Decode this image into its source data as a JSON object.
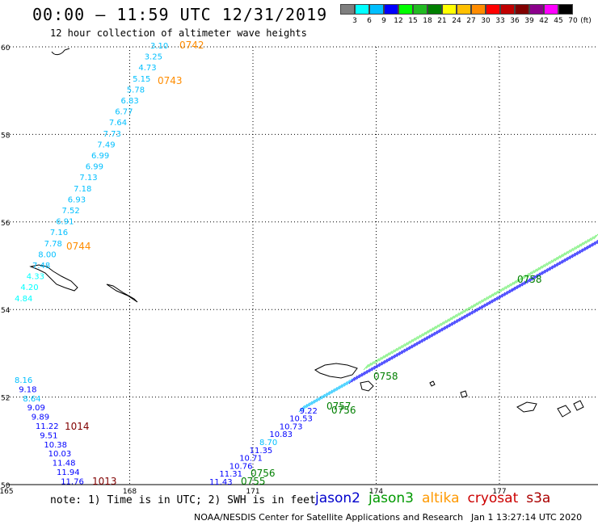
{
  "header": {
    "title": "00:00 – 11:59 UTC 12/31/2019",
    "subtitle": "12 hour collection of altimeter wave heights"
  },
  "legend": {
    "unit": "(ft)",
    "bins": [
      {
        "label": "3",
        "color": "#7f7f7f"
      },
      {
        "label": "6",
        "color": "#00ffff"
      },
      {
        "label": "9",
        "color": "#00bfff"
      },
      {
        "label": "12",
        "color": "#0000ff"
      },
      {
        "label": "15",
        "color": "#00ff00"
      },
      {
        "label": "18",
        "color": "#22bb22"
      },
      {
        "label": "21",
        "color": "#007f00"
      },
      {
        "label": "24",
        "color": "#ffff00"
      },
      {
        "label": "27",
        "color": "#ffc000"
      },
      {
        "label": "30",
        "color": "#ff8c00"
      },
      {
        "label": "33",
        "color": "#ff0000"
      },
      {
        "label": "36",
        "color": "#c00000"
      },
      {
        "label": "39",
        "color": "#800000"
      },
      {
        "label": "42",
        "color": "#8b008b"
      },
      {
        "label": "45",
        "color": "#ff00ff"
      },
      {
        "label": "70",
        "color": "#000000"
      }
    ]
  },
  "map": {
    "lat_labels": [
      "60",
      "58",
      "56",
      "54",
      "52",
      "50"
    ],
    "lon_labels": [
      "165",
      "168",
      "171",
      "174",
      "177"
    ],
    "lat_range": [
      50,
      60
    ],
    "lon_range": [
      165,
      179.4
    ]
  },
  "tracks": {
    "north_track": [
      {
        "label": "3.10",
        "color": "#00bfff"
      },
      {
        "label": "3.25",
        "color": "#00bfff"
      },
      {
        "label": "4.73",
        "color": "#00bfff"
      },
      {
        "label": "5.15",
        "color": "#00bfff"
      },
      {
        "label": "5.78",
        "color": "#00bfff"
      },
      {
        "label": "6.83",
        "color": "#00bfff"
      },
      {
        "label": "6.77",
        "color": "#00bfff"
      },
      {
        "label": "7.64",
        "color": "#00bfff"
      },
      {
        "label": "7.73",
        "color": "#00bfff"
      },
      {
        "label": "7.49",
        "color": "#00bfff"
      },
      {
        "label": "6.99",
        "color": "#00bfff"
      },
      {
        "label": "6.99",
        "color": "#00bfff"
      },
      {
        "label": "7.13",
        "color": "#00bfff"
      },
      {
        "label": "7.18",
        "color": "#00bfff"
      },
      {
        "label": "6.93",
        "color": "#00bfff"
      },
      {
        "label": "7.52",
        "color": "#00bfff"
      },
      {
        "label": "6.91",
        "color": "#00bfff"
      },
      {
        "label": "7.16",
        "color": "#00bfff"
      },
      {
        "label": "7.78",
        "color": "#00bfff"
      },
      {
        "label": "8.00",
        "color": "#00bfff"
      },
      {
        "label": "7.48",
        "color": "#00bfff"
      },
      {
        "label": "4.33",
        "color": "#00ffff"
      },
      {
        "label": "4.20",
        "color": "#00ffff"
      },
      {
        "label": "4.84",
        "color": "#00ffff"
      }
    ],
    "north_times": [
      {
        "label": "0742",
        "color": "#ff8c00"
      },
      {
        "label": "0743",
        "color": "#ff8c00"
      },
      {
        "label": "0744",
        "color": "#ff8c00"
      }
    ],
    "south_track": [
      {
        "label": "8.16",
        "color": "#00bfff"
      },
      {
        "label": "9.18",
        "color": "#0000ff"
      },
      {
        "label": "8.64",
        "color": "#00bfff"
      },
      {
        "label": "9.09",
        "color": "#0000ff"
      },
      {
        "label": "9.89",
        "color": "#0000ff"
      },
      {
        "label": "11.22",
        "color": "#0000ff"
      },
      {
        "label": "9.51",
        "color": "#0000ff"
      },
      {
        "label": "10.38",
        "color": "#0000ff"
      },
      {
        "label": "10.03",
        "color": "#0000ff"
      },
      {
        "label": "11.48",
        "color": "#0000ff"
      },
      {
        "label": "11.94",
        "color": "#0000ff"
      },
      {
        "label": "11.76",
        "color": "#0000ff"
      }
    ],
    "south_times": [
      {
        "label": "1014",
        "color": "#800000"
      },
      {
        "label": "1013",
        "color": "#800000"
      }
    ],
    "diag_track": [
      {
        "label": "11.43",
        "color": "#0000ff"
      },
      {
        "label": "11.31",
        "color": "#0000ff"
      },
      {
        "label": "10.76",
        "color": "#0000ff"
      },
      {
        "label": "10.71",
        "color": "#0000ff"
      },
      {
        "label": "11.35",
        "color": "#0000ff"
      },
      {
        "label": "8.70",
        "color": "#00bfff"
      },
      {
        "label": "10.83",
        "color": "#0000ff"
      },
      {
        "label": "10.73",
        "color": "#0000ff"
      },
      {
        "label": "10.53",
        "color": "#0000ff"
      },
      {
        "label": "9.22",
        "color": "#0000ff"
      }
    ],
    "diag_times": [
      {
        "label": "0755",
        "color": "#007f00"
      },
      {
        "label": "0756",
        "color": "#007f00"
      },
      {
        "label": "0756",
        "color": "#007f00"
      },
      {
        "label": "0757",
        "color": "#007f00"
      },
      {
        "label": "0758",
        "color": "#007f00"
      },
      {
        "label": "0758",
        "color": "#007f00"
      }
    ]
  },
  "footer": {
    "note": "note: 1) Time is in UTC; 2) SWH is in feet",
    "satellites": [
      {
        "label": "jason2",
        "color": "#0000cc"
      },
      {
        "label": "jason3",
        "color": "#009900"
      },
      {
        "label": "altika",
        "color": "#ff9900"
      },
      {
        "label": "cryosat",
        "color": "#cc0000"
      },
      {
        "label": "s3a",
        "color": "#aa0000"
      }
    ],
    "credit": "NOAA/NESDIS Center for Satellite Applications and Research",
    "timestamp": "Jan  1 13:27:14 UTC 2020"
  }
}
